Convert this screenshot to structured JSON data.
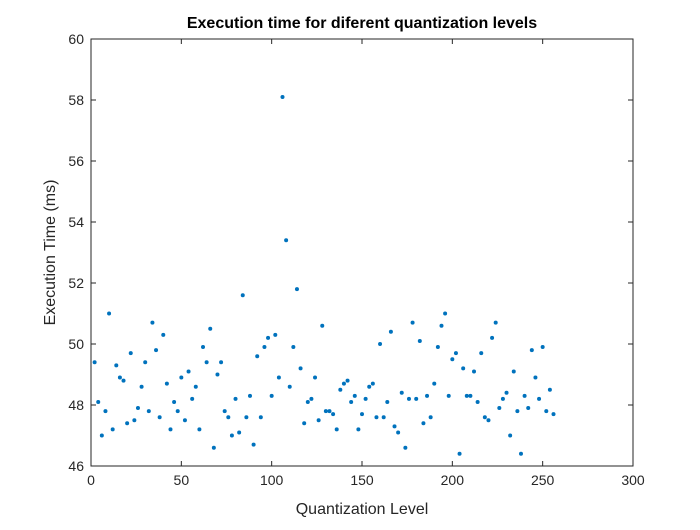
{
  "chart_data": {
    "type": "scatter",
    "title": "Execution time for diferent quantization levels",
    "xlabel": "Quantization Level",
    "ylabel": "Execution Time (ms)",
    "xlim": [
      0,
      300
    ],
    "ylim": [
      46,
      60
    ],
    "xticks": [
      0,
      50,
      100,
      150,
      200,
      250,
      300
    ],
    "yticks": [
      46,
      48,
      50,
      52,
      54,
      56,
      58,
      60
    ],
    "xtick_labels": [
      "0",
      "50",
      "100",
      "150",
      "200",
      "250",
      "300"
    ],
    "ytick_labels": [
      "46",
      "48",
      "50",
      "52",
      "54",
      "56",
      "58",
      "60"
    ],
    "grid": false,
    "marker_color": "#0072BD",
    "series": [
      {
        "x": [
          2,
          4,
          6,
          8,
          10,
          12,
          14,
          16,
          18,
          20,
          22,
          24,
          26,
          28,
          30,
          32,
          34,
          36,
          38,
          40,
          42,
          44,
          46,
          48,
          50,
          52,
          54,
          56,
          58,
          60,
          62,
          64,
          66,
          68,
          70,
          72,
          74,
          76,
          78,
          80,
          82,
          84,
          86,
          88,
          90,
          92,
          94,
          96,
          98,
          100,
          102,
          104,
          106,
          108,
          110,
          112,
          114,
          116,
          118,
          120,
          122,
          124,
          126,
          128,
          130,
          132,
          134,
          136,
          138,
          140,
          142,
          144,
          146,
          148,
          150,
          152,
          154,
          156,
          158,
          160,
          162,
          164,
          166,
          168,
          170,
          172,
          174,
          176,
          178,
          180,
          182,
          184,
          186,
          188,
          190,
          192,
          194,
          196,
          198,
          200,
          202,
          204,
          206,
          208,
          210,
          212,
          214,
          216,
          218,
          220,
          222,
          224,
          226,
          228,
          230,
          232,
          234,
          236,
          238,
          240,
          242,
          244,
          246,
          248,
          250,
          252,
          254,
          256
        ],
        "y": [
          49.4,
          48.1,
          47.0,
          47.8,
          51.0,
          47.2,
          49.3,
          48.9,
          48.8,
          47.4,
          49.7,
          47.5,
          47.9,
          48.6,
          49.4,
          47.8,
          50.7,
          49.8,
          47.6,
          50.3,
          48.7,
          47.2,
          48.1,
          47.8,
          48.9,
          47.5,
          49.1,
          48.2,
          48.6,
          47.2,
          49.9,
          49.4,
          50.5,
          46.6,
          49.0,
          49.4,
          47.8,
          47.6,
          47.0,
          48.2,
          47.1,
          51.6,
          47.6,
          48.3,
          46.7,
          49.6,
          47.6,
          49.9,
          50.2,
          48.3,
          50.3,
          48.9,
          58.1,
          53.4,
          48.6,
          49.9,
          51.8,
          49.2,
          47.4,
          48.1,
          48.2,
          48.9,
          47.5,
          50.6,
          47.8,
          47.8,
          47.7,
          47.2,
          48.5,
          48.7,
          48.8,
          48.1,
          48.3,
          47.2,
          47.7,
          48.2,
          48.6,
          48.7,
          47.6,
          50.0,
          47.6,
          48.1,
          50.4,
          47.3,
          47.1,
          48.4,
          46.6,
          48.2,
          50.7,
          48.2,
          50.1,
          47.4,
          48.3,
          47.6,
          48.7,
          49.9,
          50.6,
          51.0,
          48.3,
          49.5,
          49.7,
          46.4,
          49.2,
          48.3,
          48.3,
          49.1,
          48.1,
          49.7,
          47.6,
          47.5,
          50.2,
          50.7,
          47.9,
          48.2,
          48.4,
          47.0,
          49.1,
          47.8,
          46.4,
          48.3,
          47.9,
          49.8,
          48.9,
          48.2,
          49.9,
          47.8,
          48.5,
          47.7
        ]
      }
    ]
  }
}
